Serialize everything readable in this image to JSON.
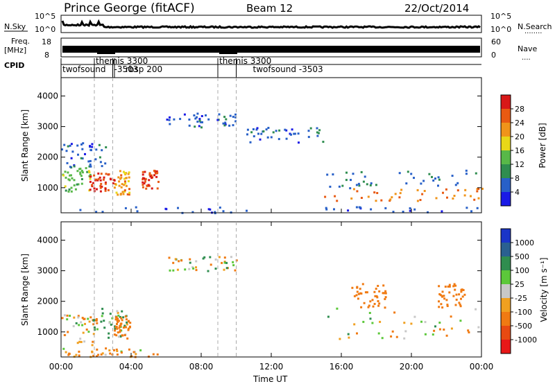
{
  "header": {
    "station": "Prince George (fitACF)",
    "beam": "Beam 12",
    "date": "22/Oct/2014"
  },
  "noise_panel": {
    "left_label": "N.Sky",
    "right_label": "N.Search",
    "left_ticks": [
      "10^5",
      "10^0"
    ],
    "right_ticks": [
      "10^5",
      "10^0"
    ],
    "right_legend": "........"
  },
  "freq_panel": {
    "left_label": "Freq.",
    "left_unit": "[MHz]",
    "right_label": "Nave",
    "left_ticks": [
      "18",
      "8"
    ],
    "right_ticks": [
      "60",
      "0"
    ],
    "right_legend": "....",
    "freq_mhz": [
      [
        0,
        11.2
      ],
      [
        2.0,
        11.2
      ],
      [
        2.0,
        9.0
      ],
      [
        3.0,
        9.0
      ],
      [
        3.0,
        11.2
      ],
      [
        9.0,
        11.2
      ],
      [
        9.0,
        9.0
      ],
      [
        10.0,
        9.0
      ],
      [
        10.0,
        11.2
      ],
      [
        24,
        11.2
      ]
    ]
  },
  "cpid": {
    "label": "CPID",
    "segments": [
      {
        "start_h": 0.0,
        "name": "twofsound",
        "cpid": ""
      },
      {
        "start_h": 1.9,
        "name": "themis",
        "cpid": "3300"
      },
      {
        "start_h": 2.95,
        "name": "",
        "cpid": "-3503"
      },
      {
        "start_h": 3.05,
        "name": "rbsp",
        "cpid": "200"
      },
      {
        "start_h": 8.95,
        "name": "themis",
        "cpid": "3300"
      },
      {
        "start_h": 10.0,
        "name": "twofsound",
        "cpid": "-3503"
      }
    ]
  },
  "power_panel": {
    "ylabel": "Slant Range [km]",
    "yticks": [
      "1000",
      "2000",
      "3000",
      "4000"
    ],
    "colorbar_label": "Power [dB]",
    "colorbar_ticks": [
      "4",
      "8",
      "12",
      "16",
      "20",
      "24",
      "28"
    ],
    "colors": [
      "#1a1ae6",
      "#2860c8",
      "#2f8d4f",
      "#58b848",
      "#e8d818",
      "#f0941a",
      "#e85a12",
      "#d81818"
    ]
  },
  "velocity_panel": {
    "ylabel": "Slant Range [km]",
    "yticks": [
      "1000",
      "2000",
      "3000",
      "4000"
    ],
    "colorbar_label": "Velocity [m s⁻¹]",
    "colorbar_ticks": [
      "1000",
      "500",
      "100",
      "25",
      "-25",
      "-100",
      "-500",
      "-1000"
    ],
    "colors": [
      "#1a35c8",
      "#2a6090",
      "#2f8d4f",
      "#5cc83a",
      "#c8c8c8",
      "#f0a020",
      "#f07a12",
      "#e84a12",
      "#e81818"
    ]
  },
  "xaxis": {
    "label": "Time UT",
    "ticks": [
      "00:00",
      "04:00",
      "08:00",
      "12:00",
      "16:00",
      "20:00",
      "00:00"
    ]
  },
  "chart_data": {
    "type": "heatmap",
    "title": "Prince George (fitACF)",
    "xlabel": "Time UT",
    "ylabel": "Slant Range [km]",
    "xlim": [
      0,
      24
    ],
    "ylim": [
      180,
      4600
    ],
    "panels": [
      {
        "name": "Power",
        "units": "dB",
        "zlim": [
          0,
          32
        ],
        "regions": [
          {
            "t0": 0.0,
            "t1": 1.8,
            "r0": 800,
            "r1": 1700,
            "value": 14
          },
          {
            "t0": 1.6,
            "t1": 3.0,
            "r0": 900,
            "r1": 1500,
            "value": 28
          },
          {
            "t0": 3.0,
            "t1": 3.9,
            "r0": 800,
            "r1": 1600,
            "value": 22
          },
          {
            "t0": 4.6,
            "t1": 5.6,
            "r0": 1000,
            "r1": 1600,
            "value": 28
          },
          {
            "t0": 0.0,
            "t1": 2.6,
            "r0": 1700,
            "r1": 2500,
            "value": 6
          },
          {
            "t0": 6.0,
            "t1": 10.0,
            "r0": 3000,
            "r1": 3500,
            "value": 6
          },
          {
            "t0": 10.5,
            "t1": 15.0,
            "r0": 2500,
            "r1": 3000,
            "value": 6
          },
          {
            "t0": 15.0,
            "t1": 24.0,
            "r0": 600,
            "r1": 1000,
            "value": 24
          },
          {
            "t0": 15.0,
            "t1": 24.0,
            "r0": 1000,
            "r1": 1600,
            "value": 8
          },
          {
            "t0": 0.0,
            "t1": 24.0,
            "r0": 200,
            "r1": 400,
            "value": 5
          }
        ]
      },
      {
        "name": "Velocity",
        "units": "m s-1",
        "zlim": [
          -1000,
          1000
        ],
        "regions": [
          {
            "t0": 0.0,
            "t1": 2.0,
            "r0": 600,
            "r1": 1600,
            "value": -80
          },
          {
            "t0": 1.8,
            "t1": 3.8,
            "r0": 800,
            "r1": 1800,
            "value": 120
          },
          {
            "t0": 3.0,
            "t1": 3.9,
            "r0": 800,
            "r1": 1600,
            "value": -300
          },
          {
            "t0": 6.0,
            "t1": 10.0,
            "r0": 3000,
            "r1": 3500,
            "value": 0
          },
          {
            "t0": 15.0,
            "t1": 24.0,
            "r0": 800,
            "r1": 1800,
            "value": 0
          },
          {
            "t0": 16.5,
            "t1": 18.5,
            "r0": 1800,
            "r1": 2600,
            "value": -300
          },
          {
            "t0": 21.5,
            "t1": 23.0,
            "r0": 1800,
            "r1": 2600,
            "value": -300
          },
          {
            "t0": 0.0,
            "t1": 5.5,
            "r0": 200,
            "r1": 500,
            "value": -150
          }
        ]
      }
    ]
  }
}
